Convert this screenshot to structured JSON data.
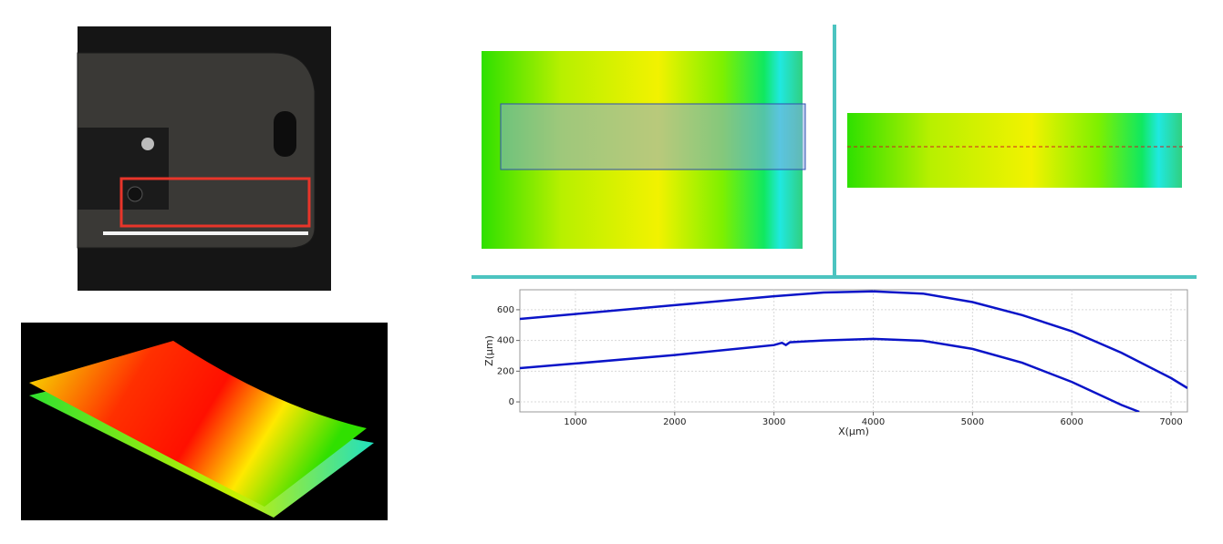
{
  "chart_data": {
    "type": "line",
    "x_label": "X(µm)",
    "y_label": "Z(µm)",
    "xlim": [
      440,
      7165
    ],
    "ylim": [
      -65,
      730
    ],
    "xticks": [
      1000,
      2000,
      3000,
      4000,
      5000,
      6000,
      7000
    ],
    "yticks": [
      0,
      200,
      400,
      600
    ],
    "grid": true,
    "series": [
      {
        "color": "#0a14c8",
        "x": [
          440,
          1000,
          2000,
          3000,
          3500,
          4000,
          4500,
          5000,
          5500,
          6000,
          6500,
          7000,
          7165
        ],
        "values": [
          540,
          572,
          630,
          688,
          712,
          720,
          705,
          650,
          565,
          460,
          320,
          155,
          90
        ]
      },
      {
        "color": "#0a14c8",
        "x": [
          440,
          1000,
          2000,
          3000,
          3080,
          3120,
          3160,
          3500,
          4000,
          4500,
          5000,
          5500,
          6000,
          6500,
          6680
        ],
        "values": [
          220,
          250,
          305,
          370,
          385,
          370,
          388,
          400,
          410,
          398,
          345,
          255,
          130,
          -20,
          -65
        ]
      }
    ]
  }
}
